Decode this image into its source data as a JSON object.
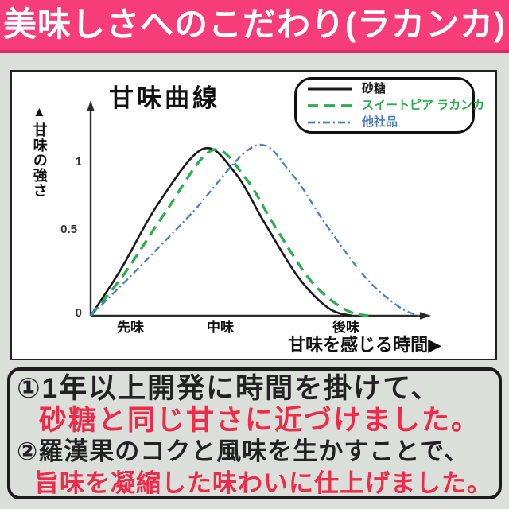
{
  "page": {
    "background_color": "#dbdfda"
  },
  "banner": {
    "title": "美味しさへのこだわり(ラカンカ)",
    "bg_color": "#f63d7a",
    "edge_color": "#e12765",
    "text_color": "#ffffff"
  },
  "chart_data": {
    "type": "line",
    "title": "甘味曲線",
    "ylabel_arrow": "▲",
    "ylabel": "甘味の強さ",
    "xlabel": "甘味を感じる時間▶",
    "x_ticks": [
      "先味",
      "中味",
      "後味"
    ],
    "y_ticks": [
      "0",
      "0.5",
      "1"
    ],
    "ylim": [
      0,
      1.15
    ],
    "grid": false,
    "legend_position": "top-right",
    "series": [
      {
        "name": "砂糖",
        "style": "solid",
        "color": "#1a1a1a",
        "points": [
          [
            0,
            0
          ],
          [
            0.09,
            0.3
          ],
          [
            0.2,
            0.72
          ],
          [
            0.334,
            1.08
          ],
          [
            0.43,
            0.93
          ],
          [
            0.52,
            0.6
          ],
          [
            0.62,
            0.25
          ],
          [
            0.71,
            0.05
          ],
          [
            0.78,
            0
          ]
        ]
      },
      {
        "name": "スイートピア ラカンカ",
        "style": "dashed",
        "color": "#2bae4d",
        "points": [
          [
            0,
            0
          ],
          [
            0.1,
            0.27
          ],
          [
            0.22,
            0.66
          ],
          [
            0.36,
            1.07
          ],
          [
            0.46,
            0.9
          ],
          [
            0.55,
            0.58
          ],
          [
            0.66,
            0.22
          ],
          [
            0.76,
            0.04
          ],
          [
            0.83,
            0
          ]
        ]
      },
      {
        "name": "他社品",
        "style": "dash-dot",
        "color": "#4b7dc2",
        "points": [
          [
            0,
            0
          ],
          [
            0.13,
            0.28
          ],
          [
            0.3,
            0.66
          ],
          [
            0.49,
            1.1
          ],
          [
            0.6,
            0.92
          ],
          [
            0.7,
            0.6
          ],
          [
            0.82,
            0.25
          ],
          [
            0.92,
            0.06
          ],
          [
            0.98,
            0
          ]
        ]
      }
    ]
  },
  "notes": {
    "red_color": "#ee2b4a",
    "items": [
      {
        "black": "①1年以上開発に時間を掛けて、",
        "red": "砂糖と同じ甘さに近づけました。"
      },
      {
        "black": "②羅漢果のコクと風味を生かすことで、",
        "red": "旨味を凝縮した味わいに仕上げました。"
      }
    ]
  }
}
